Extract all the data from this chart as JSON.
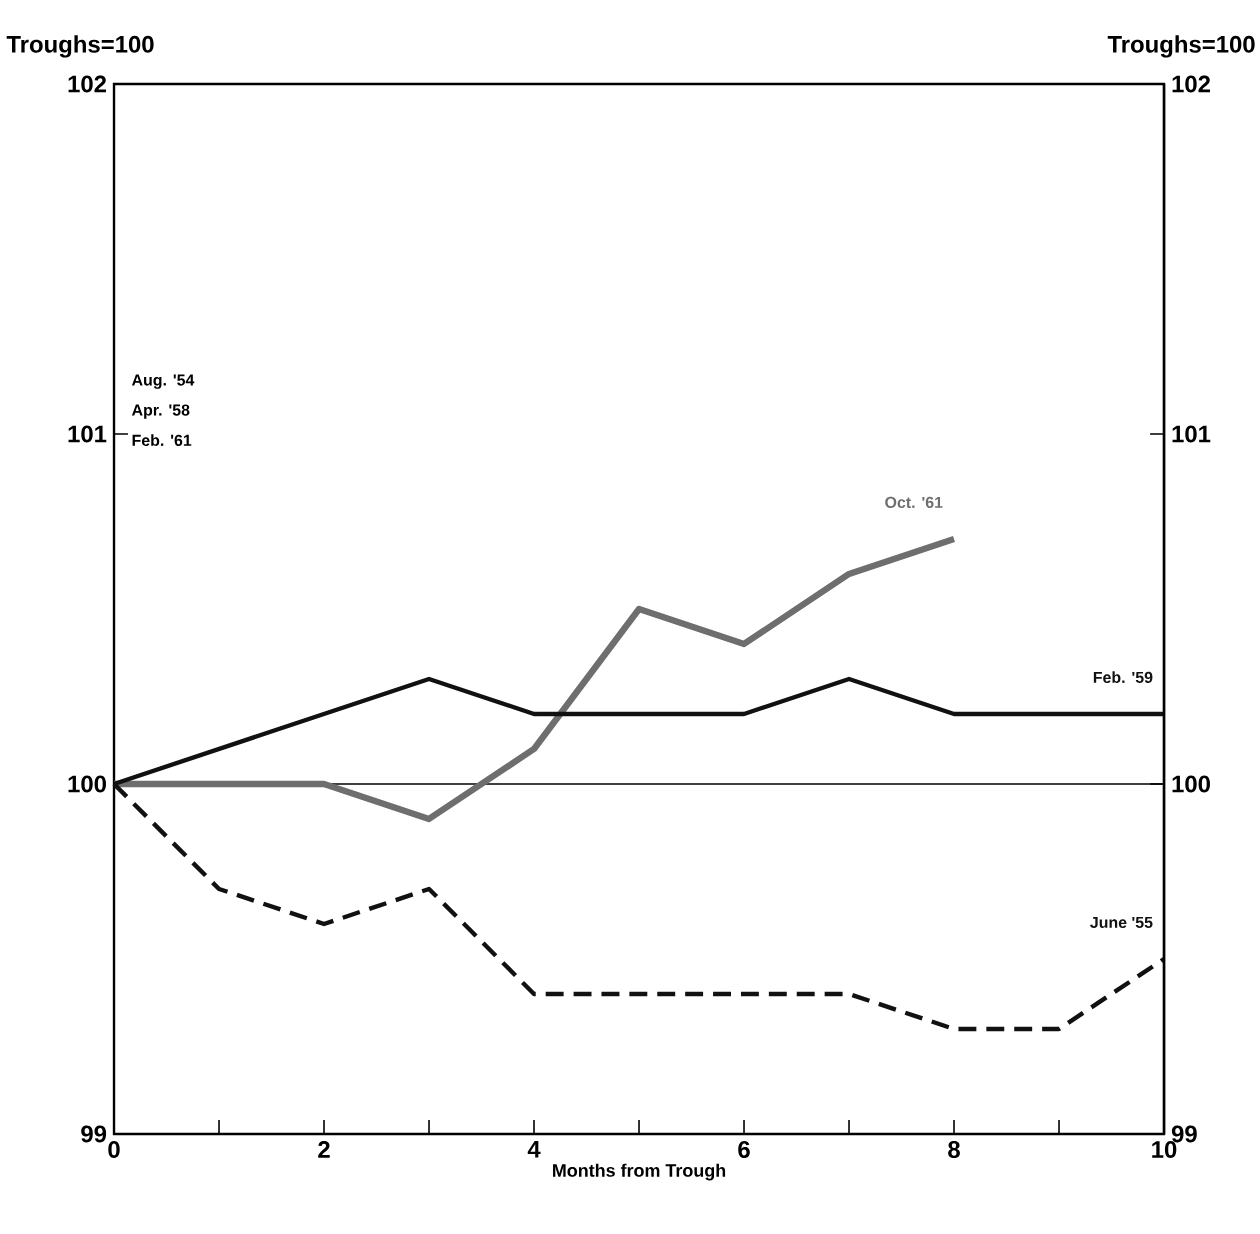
{
  "chart_data": {
    "type": "line",
    "xlabel": "Months from Trough",
    "ylabel": "Troughs=100",
    "y2label": "Troughs=100",
    "xlim": [
      0,
      10
    ],
    "xticks": [
      0,
      {
        "value": 1,
        "label": null
      },
      2,
      {
        "value": 3,
        "label": null
      },
      4,
      {
        "value": 5,
        "label": null
      },
      6,
      {
        "value": 7,
        "label": null
      },
      8,
      {
        "value": 9,
        "label": null
      },
      10
    ],
    "ylim": [
      99,
      102
    ],
    "yticks": [
      99,
      100,
      101,
      102
    ],
    "y2lim": [
      99,
      102
    ],
    "y2ticks": [
      99,
      100,
      101,
      102
    ],
    "ref_lines": [
      {
        "axis": "y",
        "value": 100,
        "color": "#000000"
      }
    ],
    "annotations": [
      "Aug. '54",
      "Apr. '58",
      "Feb. '61"
    ],
    "series": [
      {
        "name": "Oct. '61",
        "color": "#6e6e6e",
        "line_style": "solid",
        "x": [
          0,
          1,
          2,
          3,
          4,
          5,
          6,
          7,
          8
        ],
        "values": [
          100,
          100,
          100,
          99.9,
          100.1,
          100.5,
          100.4,
          100.6,
          100.7
        ]
      },
      {
        "name": "Feb. '59",
        "color": "#111111",
        "line_style": "solid",
        "x": [
          0,
          1,
          2,
          3,
          4,
          5,
          6,
          7,
          8,
          9,
          10
        ],
        "values": [
          100,
          100.1,
          100.2,
          100.3,
          100.2,
          100.2,
          100.2,
          100.3,
          100.2,
          100.2,
          100.2
        ]
      },
      {
        "name": "June '55",
        "color": "#111111",
        "line_style": "dashed",
        "x": [
          0,
          1,
          2,
          3,
          4,
          5,
          6,
          7,
          8,
          9,
          10
        ],
        "values": [
          100,
          99.7,
          99.6,
          99.7,
          99.4,
          99.4,
          99.4,
          99.4,
          99.3,
          99.3,
          99.5
        ]
      }
    ]
  }
}
